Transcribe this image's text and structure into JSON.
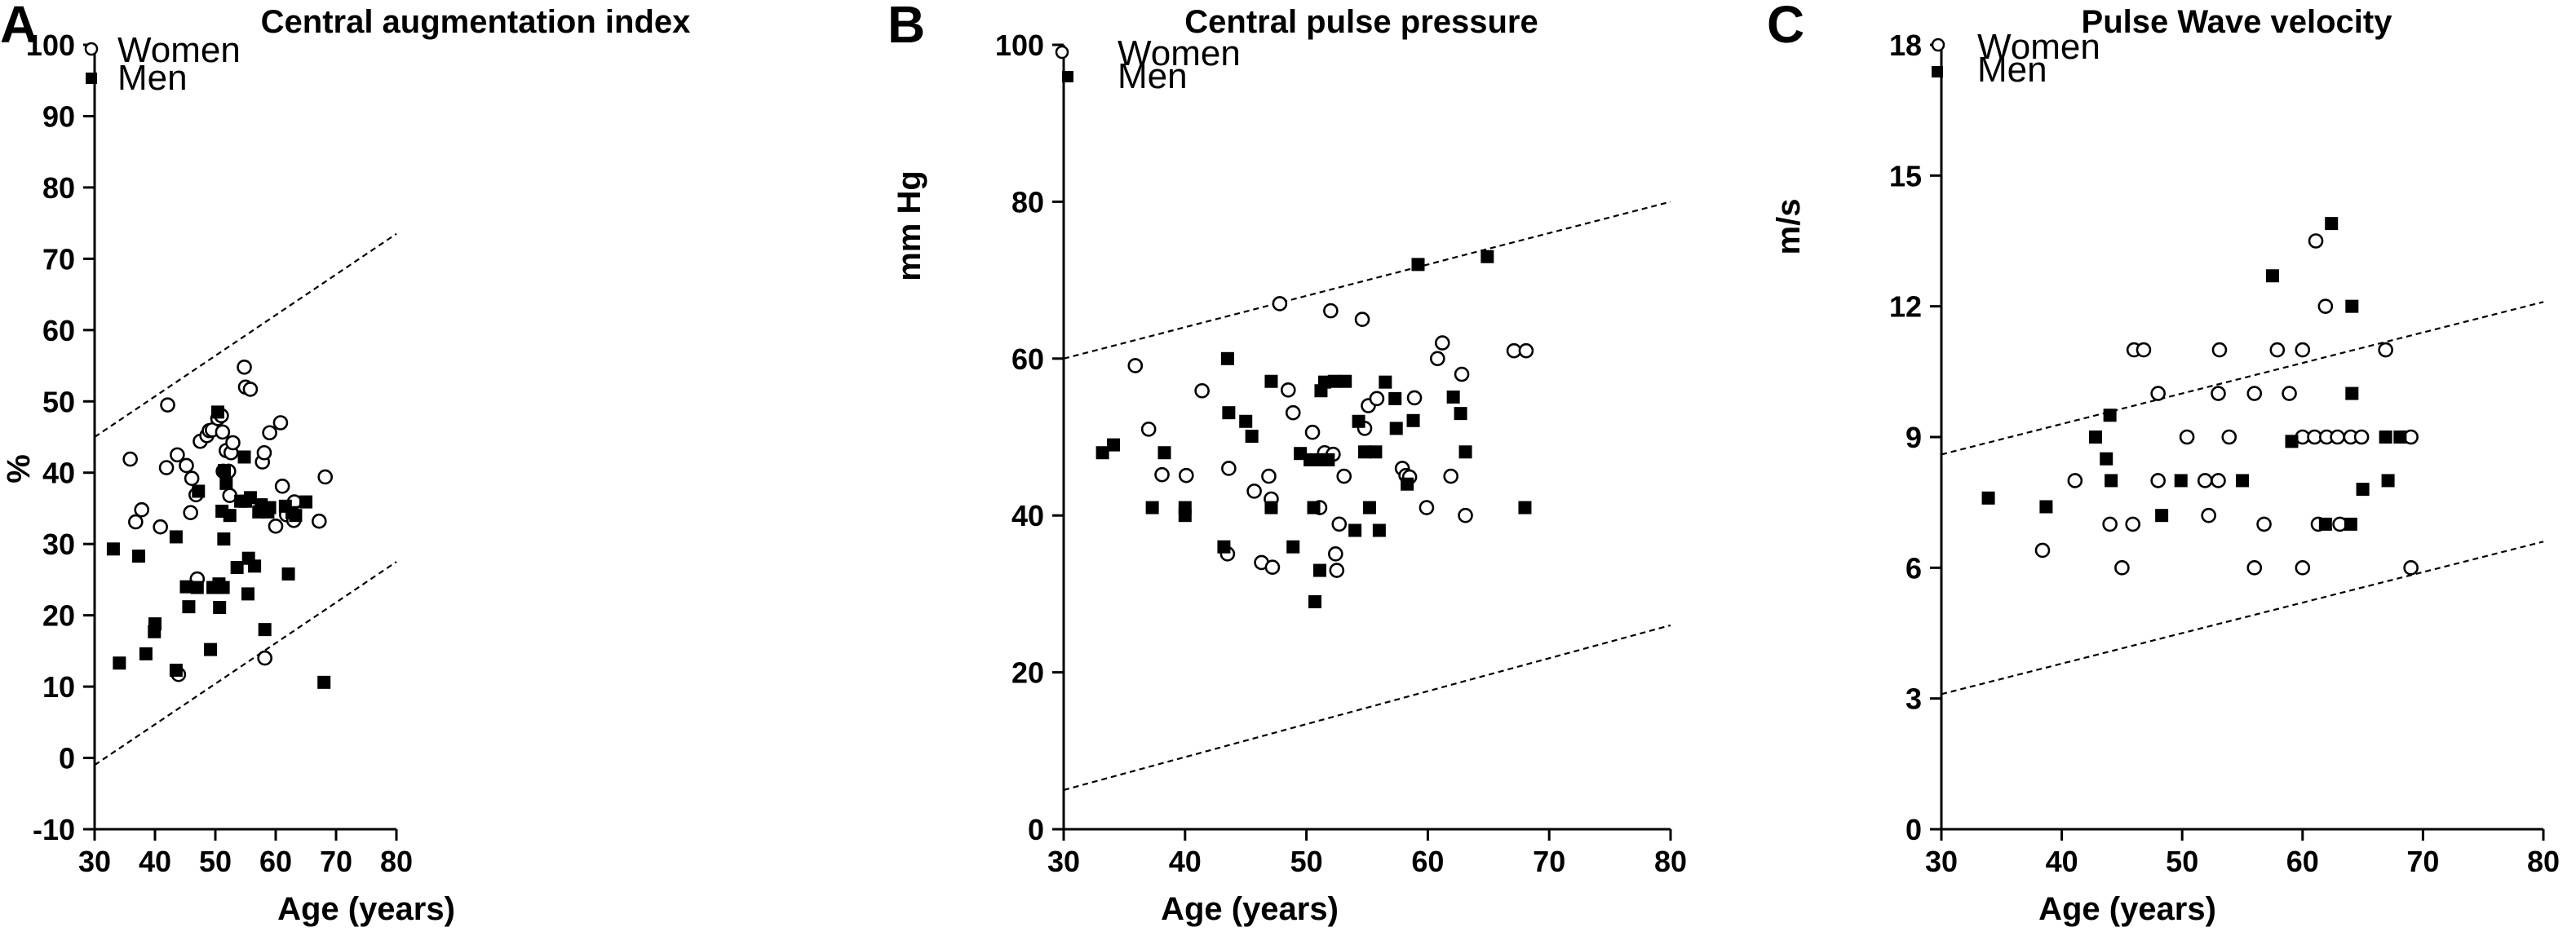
{
  "chart_data": [
    {
      "type": "scatter",
      "panel_letter": "A",
      "title": "Central augmentation index",
      "xlabel": "Age (years)",
      "ylabel": "%",
      "xlim": [
        30,
        80
      ],
      "ylim": [
        -10,
        100
      ],
      "xticks": [
        30,
        40,
        50,
        60,
        70,
        80
      ],
      "yticks": [
        -10,
        0,
        10,
        20,
        30,
        40,
        50,
        60,
        70,
        80,
        90,
        100
      ],
      "grid": false,
      "legend_position": "top-left",
      "series": [
        {
          "name": "Women",
          "marker": "open-circle",
          "points": [
            [
              35.9,
              41.9
            ],
            [
              36.8,
              33.1
            ],
            [
              37.8,
              34.8
            ],
            [
              40.9,
              32.4
            ],
            [
              41.9,
              40.7
            ],
            [
              42.1,
              49.5
            ],
            [
              43.7,
              42.5
            ],
            [
              43.9,
              11.7
            ],
            [
              45.2,
              41.0
            ],
            [
              45.9,
              34.4
            ],
            [
              46.1,
              39.2
            ],
            [
              46.8,
              36.9
            ],
            [
              47.0,
              25.1
            ],
            [
              47.5,
              44.4
            ],
            [
              48.6,
              45.2
            ],
            [
              49.0,
              45.9
            ],
            [
              49.5,
              46.0
            ],
            [
              50.4,
              47.6
            ],
            [
              51.0,
              48.0
            ],
            [
              51.2,
              45.7
            ],
            [
              51.3,
              40.2
            ],
            [
              51.8,
              43.1
            ],
            [
              52.2,
              40.2
            ],
            [
              52.4,
              36.8
            ],
            [
              52.6,
              42.8
            ],
            [
              52.9,
              44.2
            ],
            [
              54.8,
              54.8
            ],
            [
              55.0,
              52.0
            ],
            [
              55.8,
              51.7
            ],
            [
              57.8,
              41.5
            ],
            [
              58.1,
              42.8
            ],
            [
              58.2,
              14.0
            ],
            [
              59.0,
              45.6
            ],
            [
              60.0,
              32.5
            ],
            [
              60.8,
              47.0
            ],
            [
              61.1,
              38.1
            ],
            [
              61.8,
              34.1
            ],
            [
              63.0,
              33.3
            ],
            [
              63.1,
              35.9
            ],
            [
              67.2,
              33.2
            ],
            [
              68.2,
              39.4
            ]
          ]
        },
        {
          "name": "Men",
          "marker": "filled-square",
          "points": [
            [
              33.1,
              29.3
            ],
            [
              34.1,
              13.3
            ],
            [
              37.3,
              28.3
            ],
            [
              38.5,
              14.6
            ],
            [
              39.9,
              17.7
            ],
            [
              40.0,
              18.8
            ],
            [
              43.5,
              31.0
            ],
            [
              43.5,
              12.3
            ],
            [
              45.2,
              24.0
            ],
            [
              45.6,
              21.2
            ],
            [
              47.0,
              23.9
            ],
            [
              47.2,
              37.4
            ],
            [
              49.2,
              15.2
            ],
            [
              49.6,
              23.9
            ],
            [
              50.4,
              48.5
            ],
            [
              50.6,
              24.4
            ],
            [
              50.7,
              21.1
            ],
            [
              51.1,
              34.6
            ],
            [
              51.3,
              23.9
            ],
            [
              51.4,
              30.7
            ],
            [
              51.5,
              40.3
            ],
            [
              51.8,
              38.5
            ],
            [
              52.4,
              34.0
            ],
            [
              53.6,
              26.7
            ],
            [
              54.2,
              36.0
            ],
            [
              54.8,
              42.2
            ],
            [
              55.0,
              36.0
            ],
            [
              55.4,
              23.0
            ],
            [
              55.5,
              28.0
            ],
            [
              55.8,
              36.5
            ],
            [
              56.5,
              26.9
            ],
            [
              57.2,
              34.5
            ],
            [
              57.6,
              35.5
            ],
            [
              58.2,
              18.0
            ],
            [
              58.7,
              34.5
            ],
            [
              59.0,
              35.1
            ],
            [
              61.6,
              35.3
            ],
            [
              62.1,
              25.8
            ],
            [
              62.7,
              34.4
            ],
            [
              63.3,
              34.0
            ],
            [
              65.0,
              35.9
            ],
            [
              68.0,
              10.6
            ]
          ]
        }
      ],
      "reference_lines": [
        {
          "x": [
            30,
            80
          ],
          "y": [
            45.0,
            73.5
          ],
          "style": "dashed"
        },
        {
          "x": [
            30,
            80
          ],
          "y": [
            -1.0,
            27.5
          ],
          "style": "dashed"
        }
      ]
    },
    {
      "type": "scatter",
      "panel_letter": "B",
      "title": "Central pulse pressure",
      "xlabel": "Age (years)",
      "ylabel": "mm Hg",
      "xlim": [
        30,
        80
      ],
      "ylim": [
        0,
        100
      ],
      "xticks": [
        30,
        40,
        50,
        60,
        70,
        80
      ],
      "yticks": [
        0,
        20,
        40,
        60,
        80,
        100
      ],
      "grid": false,
      "legend_position": "top-left",
      "series": [
        {
          "name": "Women",
          "marker": "open-circle",
          "points": [
            [
              35.9,
              59.1
            ],
            [
              37.0,
              51.0
            ],
            [
              38.1,
              45.2
            ],
            [
              40.1,
              45.1
            ],
            [
              41.4,
              55.9
            ],
            [
              43.5,
              35.1
            ],
            [
              43.6,
              46.0
            ],
            [
              45.7,
              43.1
            ],
            [
              46.3,
              34.0
            ],
            [
              46.9,
              45.0
            ],
            [
              47.1,
              42.1
            ],
            [
              47.2,
              33.4
            ],
            [
              47.8,
              67.0
            ],
            [
              48.5,
              56.0
            ],
            [
              48.9,
              53.1
            ],
            [
              50.5,
              50.6
            ],
            [
              51.1,
              41.0
            ],
            [
              51.5,
              48.0
            ],
            [
              52.0,
              66.1
            ],
            [
              52.2,
              47.8
            ],
            [
              52.4,
              35.1
            ],
            [
              52.5,
              33.0
            ],
            [
              52.7,
              38.9
            ],
            [
              53.1,
              45.0
            ],
            [
              54.6,
              65.0
            ],
            [
              54.8,
              51.1
            ],
            [
              55.1,
              54.0
            ],
            [
              55.8,
              54.9
            ],
            [
              57.9,
              46.0
            ],
            [
              58.2,
              45.1
            ],
            [
              58.5,
              44.9
            ],
            [
              58.9,
              55.0
            ],
            [
              59.9,
              41.0
            ],
            [
              60.8,
              60.0
            ],
            [
              61.2,
              62.0
            ],
            [
              61.9,
              45.0
            ],
            [
              62.8,
              58.0
            ],
            [
              63.1,
              40.0
            ],
            [
              67.1,
              61.0
            ],
            [
              68.1,
              61.0
            ]
          ]
        },
        {
          "name": "Men",
          "marker": "filled-square",
          "points": [
            [
              33.2,
              48.0
            ],
            [
              34.1,
              49.0
            ],
            [
              37.3,
              41.0
            ],
            [
              38.3,
              48.0
            ],
            [
              40.0,
              41.0
            ],
            [
              40.0,
              40.0
            ],
            [
              43.2,
              36.0
            ],
            [
              43.5,
              60.0
            ],
            [
              43.6,
              53.1
            ],
            [
              45.0,
              52.0
            ],
            [
              45.5,
              50.1
            ],
            [
              47.1,
              41.0
            ],
            [
              47.1,
              57.1
            ],
            [
              48.9,
              36.0
            ],
            [
              49.5,
              47.9
            ],
            [
              50.3,
              47.1
            ],
            [
              50.6,
              41.0
            ],
            [
              50.7,
              29.0
            ],
            [
              51.1,
              33.0
            ],
            [
              51.2,
              55.9
            ],
            [
              51.3,
              47.1
            ],
            [
              51.5,
              57.0
            ],
            [
              51.8,
              47.1
            ],
            [
              52.3,
              57.1
            ],
            [
              53.2,
              57.1
            ],
            [
              54.0,
              38.1
            ],
            [
              54.3,
              52.0
            ],
            [
              54.8,
              48.1
            ],
            [
              55.2,
              41.0
            ],
            [
              55.7,
              48.1
            ],
            [
              56.0,
              38.1
            ],
            [
              56.5,
              57.0
            ],
            [
              57.3,
              54.9
            ],
            [
              57.4,
              51.1
            ],
            [
              58.3,
              44.0
            ],
            [
              58.8,
              52.1
            ],
            [
              59.2,
              72.0
            ],
            [
              62.1,
              55.1
            ],
            [
              62.7,
              53.0
            ],
            [
              63.1,
              48.1
            ],
            [
              64.9,
              73.0
            ],
            [
              68.0,
              41.0
            ]
          ]
        }
      ],
      "reference_lines": [
        {
          "x": [
            30,
            80
          ],
          "y": [
            60.0,
            80.0
          ],
          "style": "dashed"
        },
        {
          "x": [
            30,
            80
          ],
          "y": [
            5.0,
            26.0
          ],
          "style": "dashed"
        }
      ]
    },
    {
      "type": "scatter",
      "panel_letter": "C",
      "title": "Pulse Wave velocity",
      "xlabel": "Age (years)",
      "ylabel": "m/s",
      "xlim": [
        30,
        80
      ],
      "ylim": [
        0,
        18
      ],
      "xticks": [
        30,
        40,
        50,
        60,
        70,
        80
      ],
      "yticks": [
        0,
        3,
        6,
        9,
        12,
        15,
        18
      ],
      "grid": false,
      "legend_position": "top-left",
      "series": [
        {
          "name": "Women",
          "marker": "open-circle",
          "points": [
            [
              38.4,
              6.4
            ],
            [
              41.1,
              8.0
            ],
            [
              44.0,
              7.0
            ],
            [
              45.0,
              6.0
            ],
            [
              45.9,
              7.0
            ],
            [
              46.0,
              11.0
            ],
            [
              46.8,
              11.0
            ],
            [
              48.0,
              10.0
            ],
            [
              48.0,
              8.0
            ],
            [
              50.4,
              9.0
            ],
            [
              51.9,
              8.0
            ],
            [
              52.2,
              7.2
            ],
            [
              53.0,
              8.0
            ],
            [
              53.0,
              10.0
            ],
            [
              53.1,
              11.0
            ],
            [
              53.9,
              9.0
            ],
            [
              56.0,
              6.0
            ],
            [
              56.0,
              10.0
            ],
            [
              56.8,
              7.0
            ],
            [
              57.9,
              11.0
            ],
            [
              58.9,
              10.0
            ],
            [
              60.0,
              11.0
            ],
            [
              60.0,
              6.0
            ],
            [
              60.0,
              9.0
            ],
            [
              61.0,
              9.0
            ],
            [
              61.1,
              13.5
            ],
            [
              61.3,
              7.0
            ],
            [
              61.9,
              12.0
            ],
            [
              62.0,
              9.0
            ],
            [
              62.9,
              9.0
            ],
            [
              63.1,
              7.0
            ],
            [
              64.0,
              9.0
            ],
            [
              64.9,
              9.0
            ],
            [
              66.9,
              11.0
            ],
            [
              69.0,
              9.0
            ],
            [
              69.0,
              6.0
            ]
          ]
        },
        {
          "name": "Men",
          "marker": "filled-square",
          "points": [
            [
              33.9,
              7.6
            ],
            [
              38.7,
              7.4
            ],
            [
              42.8,
              9.0
            ],
            [
              43.7,
              8.5
            ],
            [
              44.0,
              9.5
            ],
            [
              44.1,
              8.0
            ],
            [
              48.3,
              7.2
            ],
            [
              49.9,
              8.0
            ],
            [
              55.0,
              8.0
            ],
            [
              57.5,
              12.7
            ],
            [
              59.1,
              8.9
            ],
            [
              61.9,
              7.0
            ],
            [
              62.4,
              13.9
            ],
            [
              64.1,
              12.0
            ],
            [
              64.1,
              10.0
            ],
            [
              64.0,
              7.0
            ],
            [
              65.0,
              7.8
            ],
            [
              66.9,
              9.0
            ],
            [
              67.1,
              8.0
            ],
            [
              68.1,
              9.0
            ]
          ]
        }
      ],
      "reference_lines": [
        {
          "x": [
            30,
            80
          ],
          "y": [
            8.6,
            12.1
          ],
          "style": "dashed"
        },
        {
          "x": [
            30,
            80
          ],
          "y": [
            3.1,
            6.6
          ],
          "style": "dashed"
        }
      ]
    }
  ]
}
